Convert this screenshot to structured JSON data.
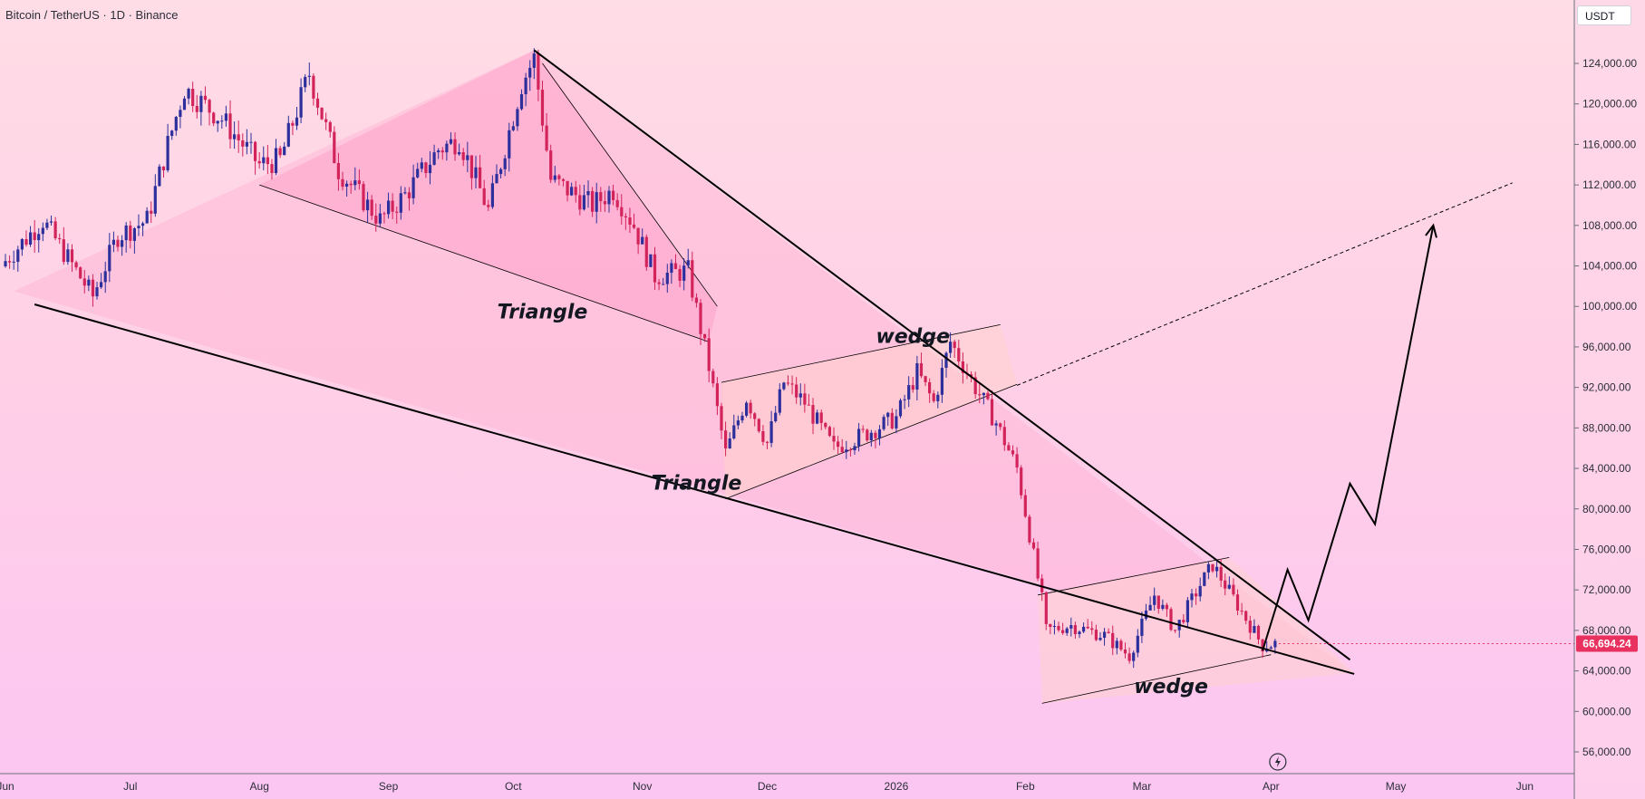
{
  "header": {
    "symbol_title": "Bitcoin / TetherUS · 1D · Binance",
    "currency": "USDT"
  },
  "colors": {
    "up_candle": "#2c2f9c",
    "down_candle": "#d2235b",
    "trendline": "#000000",
    "price_tag": "#e8315f",
    "pattern_fill": "#ff9ec0"
  },
  "chart_data": {
    "type": "candlestick",
    "symbol": "BTCUSDT",
    "interval": "1D",
    "exchange": "Binance",
    "ylim": [
      53000,
      128000
    ],
    "y_ticks": [
      56000,
      60000,
      64000,
      68000,
      72000,
      76000,
      80000,
      84000,
      88000,
      92000,
      96000,
      100000,
      104000,
      108000,
      112000,
      116000,
      120000,
      124000
    ],
    "y_tick_labels": [
      "56,000.00",
      "60,000.00",
      "64,000.00",
      "68,000.00",
      "72,000.00",
      "76,000.00",
      "80,000.00",
      "84,000.00",
      "88,000.00",
      "92,000.00",
      "96,000.00",
      "100,000.00",
      "104,000.00",
      "108,000.00",
      "112,000.00",
      "116,000.00",
      "120,000.00",
      "124,000.00"
    ],
    "x_ticks": [
      {
        "label": "Jun",
        "date": "2025-06-01"
      },
      {
        "label": "Jul",
        "date": "2025-07-01"
      },
      {
        "label": "Aug",
        "date": "2025-08-01"
      },
      {
        "label": "Sep",
        "date": "2025-09-01"
      },
      {
        "label": "Oct",
        "date": "2025-10-01"
      },
      {
        "label": "Nov",
        "date": "2025-11-01"
      },
      {
        "label": "Dec",
        "date": "2025-12-01"
      },
      {
        "label": "2026",
        "date": "2026-01-01"
      },
      {
        "label": "Feb",
        "date": "2026-02-01"
      },
      {
        "label": "Mar",
        "date": "2026-03-01"
      },
      {
        "label": "Apr",
        "date": "2026-04-01"
      },
      {
        "label": "May",
        "date": "2026-05-01"
      },
      {
        "label": "Jun",
        "date": "2026-06-01"
      }
    ],
    "last_price": 66694.24,
    "last_price_label": "66,694.24",
    "price_path": [
      [
        "2025-06-01",
        104500
      ],
      [
        "2025-06-10",
        108500
      ],
      [
        "2025-06-22",
        101000
      ],
      [
        "2025-06-28",
        107000
      ],
      [
        "2025-07-05",
        108500
      ],
      [
        "2025-07-10",
        116000
      ],
      [
        "2025-07-14",
        121500
      ],
      [
        "2025-07-23",
        118500
      ],
      [
        "2025-08-01",
        114000
      ],
      [
        "2025-08-06",
        114500
      ],
      [
        "2025-08-13",
        123000
      ],
      [
        "2025-08-20",
        113500
      ],
      [
        "2025-08-30",
        108500
      ],
      [
        "2025-09-05",
        111000
      ],
      [
        "2025-09-13",
        115500
      ],
      [
        "2025-09-18",
        116500
      ],
      [
        "2025-09-25",
        109500
      ],
      [
        "2025-10-03",
        122000
      ],
      [
        "2025-10-06",
        124500
      ],
      [
        "2025-10-10",
        112500
      ],
      [
        "2025-10-20",
        110000
      ],
      [
        "2025-10-25",
        111500
      ],
      [
        "2025-10-30",
        108000
      ],
      [
        "2025-11-04",
        103000
      ],
      [
        "2025-11-12",
        103500
      ],
      [
        "2025-11-17",
        94000
      ],
      [
        "2025-11-21",
        85500
      ],
      [
        "2025-11-26",
        91000
      ],
      [
        "2025-12-01",
        86500
      ],
      [
        "2025-12-05",
        92500
      ],
      [
        "2025-12-10",
        90500
      ],
      [
        "2025-12-17",
        86000
      ],
      [
        "2025-12-25",
        87500
      ],
      [
        "2026-01-01",
        89000
      ],
      [
        "2026-01-06",
        93500
      ],
      [
        "2026-01-10",
        90500
      ],
      [
        "2026-01-14",
        96500
      ],
      [
        "2026-01-20",
        92000
      ],
      [
        "2026-01-25",
        88500
      ],
      [
        "2026-01-30",
        84000
      ],
      [
        "2026-02-02",
        77500
      ],
      [
        "2026-02-05",
        71000
      ],
      [
        "2026-02-06",
        68000
      ],
      [
        "2026-02-12",
        68500
      ],
      [
        "2026-02-20",
        67500
      ],
      [
        "2026-02-26",
        65500
      ],
      [
        "2026-03-04",
        71500
      ],
      [
        "2026-03-09",
        68000
      ],
      [
        "2026-03-15",
        72500
      ],
      [
        "2026-03-18",
        74500
      ],
      [
        "2026-03-24",
        70500
      ],
      [
        "2026-03-30",
        66500
      ],
      [
        "2026-04-02",
        66694
      ]
    ],
    "annotations": [
      {
        "type": "text",
        "text": "Triangle",
        "date": "2025-10-08",
        "price": 98800
      },
      {
        "type": "text",
        "text": "Triangle",
        "date": "2025-11-14",
        "price": 81900
      },
      {
        "type": "text",
        "text": "wedge",
        "date": "2026-01-05",
        "price": 96400
      },
      {
        "type": "text",
        "text": "wedge",
        "date": "2026-03-08",
        "price": 61800
      },
      {
        "type": "line",
        "name": "upper-trendline",
        "points": [
          [
            "2025-10-06",
            125300
          ],
          [
            "2026-04-20",
            65100
          ]
        ]
      },
      {
        "type": "line",
        "name": "lower-trendline",
        "points": [
          [
            "2025-06-08",
            100200
          ],
          [
            "2026-04-21",
            63700
          ]
        ]
      },
      {
        "type": "dashed-line",
        "name": "projection-line",
        "points": [
          [
            "2026-01-30",
            92200
          ],
          [
            "2026-05-29",
            112200
          ]
        ]
      },
      {
        "type": "polyline",
        "name": "projected-path",
        "points": [
          [
            "2026-03-30",
            66000
          ],
          [
            "2026-04-05",
            74000
          ],
          [
            "2026-04-10",
            69000
          ],
          [
            "2026-04-20",
            82500
          ],
          [
            "2026-04-26",
            78500
          ],
          [
            "2026-05-10",
            108000
          ]
        ]
      }
    ]
  }
}
